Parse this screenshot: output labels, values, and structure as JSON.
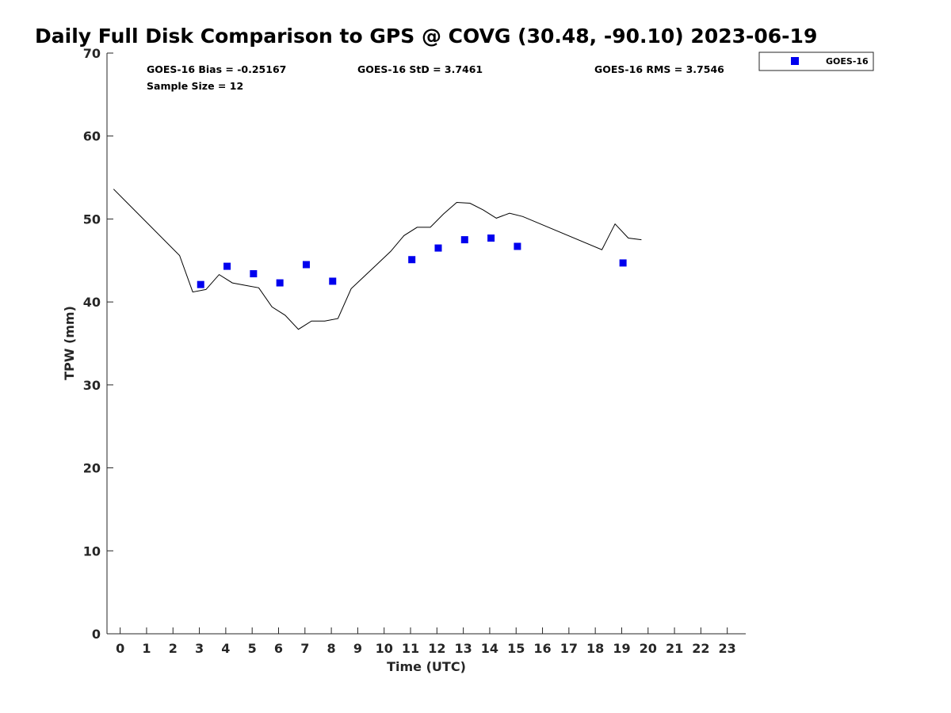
{
  "chart_data": {
    "type": "line",
    "title": "Daily Full Disk Comparison to GPS @ COVG (30.48, -90.10) 2023-06-19",
    "xlabel": "Time (UTC)",
    "ylabel": "TPW (mm)",
    "xlim": [
      -0.5,
      23.7
    ],
    "ylim": [
      0,
      70
    ],
    "x_ticks": [
      "0",
      "1",
      "2",
      "3",
      "4",
      "5",
      "6",
      "7",
      "8",
      "9",
      "10",
      "11",
      "12",
      "13",
      "14",
      "15",
      "16",
      "17",
      "18",
      "19",
      "20",
      "21",
      "22",
      "23"
    ],
    "y_ticks": [
      "0",
      "10",
      "20",
      "30",
      "40",
      "50",
      "60",
      "70"
    ],
    "grid": false,
    "legend_placement": "top-right, outside plot",
    "stats": {
      "bias": "GOES-16 Bias = -0.25167",
      "std": "GOES-16 StD = 3.7461",
      "rms": "GOES-16 RMS = 3.7546",
      "sample": "Sample Size = 12"
    },
    "series": [
      {
        "kind": "line",
        "color": "#000000",
        "points": [
          [
            -0.25,
            53.6
          ],
          [
            2.25,
            45.6
          ],
          [
            2.75,
            41.2
          ],
          [
            3.25,
            41.5
          ],
          [
            3.75,
            43.3
          ],
          [
            4.25,
            42.3
          ],
          [
            4.75,
            42.0
          ],
          [
            5.25,
            41.7
          ],
          [
            5.75,
            39.4
          ],
          [
            6.25,
            38.4
          ],
          [
            6.75,
            36.7
          ],
          [
            7.25,
            37.7
          ],
          [
            7.75,
            37.7
          ],
          [
            8.25,
            38.0
          ],
          [
            8.75,
            41.6
          ],
          [
            9.25,
            43.1
          ],
          [
            9.75,
            44.6
          ],
          [
            10.25,
            46.1
          ],
          [
            10.75,
            48.0
          ],
          [
            11.25,
            49.0
          ],
          [
            11.75,
            49.0
          ],
          [
            12.25,
            50.6
          ],
          [
            12.75,
            52.0
          ],
          [
            13.25,
            51.9
          ],
          [
            13.75,
            51.1
          ],
          [
            14.25,
            50.1
          ],
          [
            14.75,
            50.7
          ],
          [
            15.25,
            50.3
          ],
          [
            18.25,
            46.3
          ],
          [
            18.75,
            49.4
          ],
          [
            19.25,
            47.7
          ],
          [
            19.75,
            47.5
          ]
        ]
      },
      {
        "name": "GOES-16",
        "kind": "scatter",
        "color": "#0000ee",
        "points": [
          [
            3.05,
            42.1
          ],
          [
            4.05,
            44.3
          ],
          [
            5.05,
            43.4
          ],
          [
            6.05,
            42.3
          ],
          [
            7.05,
            44.5
          ],
          [
            8.05,
            42.5
          ],
          [
            11.05,
            45.1
          ],
          [
            12.05,
            46.5
          ],
          [
            13.05,
            47.5
          ],
          [
            14.05,
            47.7
          ],
          [
            15.05,
            46.7
          ],
          [
            19.05,
            44.7
          ]
        ]
      }
    ]
  }
}
